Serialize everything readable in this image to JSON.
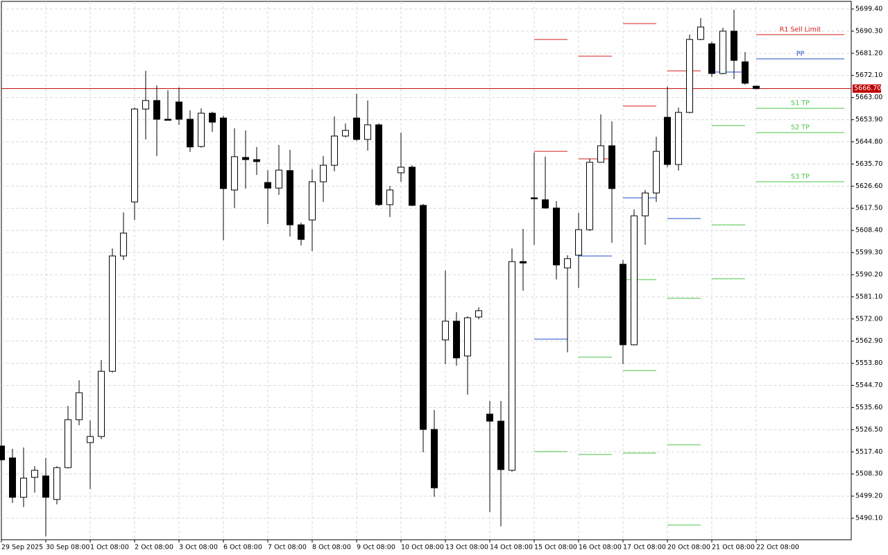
{
  "chart_data": {
    "type": "candlestick",
    "categories": [
      "29 Sep 2025",
      null,
      null,
      null,
      "30 Sep 08:00",
      null,
      null,
      null,
      "1 Oct 08:00",
      null,
      null,
      null,
      "2 Oct 08:00",
      null,
      null,
      null,
      "3 Oct 08:00",
      null,
      null,
      null,
      "6 Oct 08:00",
      null,
      null,
      null,
      "7 Oct 08:00",
      null,
      null,
      null,
      "8 Oct 08:00",
      null,
      null,
      null,
      "9 Oct 08:00",
      null,
      null,
      null,
      "10 Oct 08:00",
      null,
      null,
      null,
      "13 Oct 08:00",
      null,
      null,
      null,
      "14 Oct 08:00",
      null,
      null,
      null,
      "15 Oct 08:00",
      null,
      null,
      null,
      "16 Oct 08:00",
      null,
      null,
      null,
      "17 Oct 08:00",
      null,
      null,
      null,
      "20 Oct 08:00",
      null,
      null,
      null,
      "21 Oct 08:00",
      null,
      null,
      null,
      "22 Oct 08:00"
    ],
    "open": [
      5519.8,
      5514.9,
      5498.7,
      5506.9,
      5507.5,
      5497.8,
      5510.9,
      5530.6,
      5521.2,
      5523.7,
      5550.5,
      5597.9,
      5620.1,
      5658.3,
      5661.8,
      5654.1,
      5661.2,
      5654.1,
      5642.9,
      5656.6,
      5654.6,
      5625.0,
      5638.4,
      5637.5,
      5628.1,
      5625.8,
      5633.0,
      5610.7,
      5612.7,
      5628.4,
      5635.2,
      5647.2,
      5654.6,
      5645.8,
      5651.8,
      5619.0,
      5632.1,
      5634.4,
      5618.7,
      5526.6,
      5563.4,
      5571.1,
      5556.8,
      5572.8,
      5532.9,
      5530.0,
      5509.8,
      5595.6,
      5621.8,
      5621.0,
      5617.6,
      5593.0,
      5598.2,
      5608.7,
      5636.4,
      5643.2,
      5594.5,
      5561.4,
      5614.4,
      5623.8,
      5654.9,
      5635.5,
      5656.9,
      5686.9,
      5685.1,
      5672.9,
      5690.3,
      5677.7,
      5667.7
    ],
    "high": [
      5519.8,
      5518.6,
      5519.2,
      5511.5,
      5514.9,
      5511.5,
      5536.3,
      5546.8,
      5530.3,
      5555.1,
      5601.0,
      5615.8,
      5658.9,
      5674.0,
      5668.0,
      5666.0,
      5667.2,
      5657.8,
      5658.6,
      5657.2,
      5655.5,
      5650.4,
      5649.5,
      5642.7,
      5633.2,
      5643.5,
      5641.5,
      5611.6,
      5633.5,
      5639.0,
      5655.2,
      5652.4,
      5664.6,
      5661.8,
      5652.4,
      5626.7,
      5648.6,
      5635.2,
      5619.3,
      5534.6,
      5591.9,
      5574.8,
      5573.1,
      5576.8,
      5538.3,
      5538.3,
      5601.0,
      5609.0,
      5640.4,
      5638.7,
      5620.4,
      5598.2,
      5615.6,
      5637.8,
      5656.1,
      5653.2,
      5596.2,
      5617.0,
      5625.0,
      5646.9,
      5667.5,
      5658.9,
      5688.9,
      5695.7,
      5686.0,
      5691.7,
      5699.1,
      5681.7,
      5667.9
    ],
    "low": [
      5514.1,
      5496.4,
      5494.7,
      5500.6,
      5482.7,
      5495.8,
      5510.6,
      5528.3,
      5502.1,
      5522.6,
      5550.0,
      5596.2,
      5612.7,
      5645.8,
      5639.0,
      5653.8,
      5651.8,
      5640.7,
      5642.4,
      5648.9,
      5604.4,
      5617.6,
      5625.6,
      5631.2,
      5611.0,
      5623.0,
      5605.9,
      5602.2,
      5599.9,
      5620.1,
      5632.7,
      5646.7,
      5645.2,
      5641.2,
      5618.4,
      5613.9,
      5628.4,
      5618.4,
      5517.2,
      5498.9,
      5553.4,
      5552.8,
      5540.9,
      5571.9,
      5492.7,
      5486.7,
      5509.2,
      5583.6,
      5602.5,
      5617.3,
      5588.2,
      5558.3,
      5584.8,
      5608.2,
      5636.4,
      5603.3,
      5553.4,
      5561.1,
      5602.5,
      5620.1,
      5634.4,
      5633.0,
      5656.6,
      5686.6,
      5671.5,
      5672.6,
      5670.6,
      5668.3,
      5666.4
    ],
    "close": [
      5514.1,
      5498.7,
      5506.6,
      5509.8,
      5498.7,
      5510.9,
      5530.6,
      5541.7,
      5523.7,
      5550.5,
      5597.9,
      5607.3,
      5658.3,
      5661.8,
      5654.1,
      5653.8,
      5654.1,
      5642.7,
      5656.6,
      5652.9,
      5625.6,
      5638.7,
      5637.5,
      5636.7,
      5625.8,
      5633.2,
      5610.7,
      5604.7,
      5628.4,
      5635.2,
      5647.2,
      5649.5,
      5645.8,
      5651.8,
      5619.0,
      5625.0,
      5634.4,
      5618.7,
      5526.6,
      5502.6,
      5571.1,
      5556.0,
      5572.5,
      5575.4,
      5530.0,
      5510.1,
      5595.6,
      5595.0,
      5621.6,
      5617.6,
      5594.2,
      5596.8,
      5608.7,
      5636.4,
      5643.2,
      5625.6,
      5561.4,
      5614.4,
      5623.8,
      5640.9,
      5635.5,
      5656.9,
      5686.9,
      5692.0,
      5672.9,
      5690.3,
      5678.3,
      5668.9,
      5666.7
    ],
    "up_color": "#ffffff",
    "down_color": "#000000",
    "ylim": [
      5481.26,
      5702.54
    ],
    "yticks": [
      {
        "value": 5699.4,
        "label": "5699.40"
      },
      {
        "value": 5690.3,
        "label": "5690.30"
      },
      {
        "value": 5681.2,
        "label": "5681.20"
      },
      {
        "value": 5672.1,
        "label": "5672.10"
      },
      {
        "value": 5663.0,
        "label": "5663.00"
      },
      {
        "value": 5653.9,
        "label": "5653.90"
      },
      {
        "value": 5644.8,
        "label": "5644.80"
      },
      {
        "value": 5635.7,
        "label": "5635.70"
      },
      {
        "value": 5626.6,
        "label": "5626.60"
      },
      {
        "value": 5617.5,
        "label": "5617.50"
      },
      {
        "value": 5608.4,
        "label": "5608.40"
      },
      {
        "value": 5599.3,
        "label": "5599.30"
      },
      {
        "value": 5590.2,
        "label": "5590.20"
      },
      {
        "value": 5581.1,
        "label": "5581.10"
      },
      {
        "value": 5572.0,
        "label": "5572.00"
      },
      {
        "value": 5562.9,
        "label": "5562.90"
      },
      {
        "value": 5553.8,
        "label": "5553.80"
      },
      {
        "value": 5544.7,
        "label": "5544.70"
      },
      {
        "value": 5535.6,
        "label": "5535.60"
      },
      {
        "value": 5526.5,
        "label": "5526.50"
      },
      {
        "value": 5517.4,
        "label": "5517.40"
      },
      {
        "value": 5508.3,
        "label": "5508.30"
      },
      {
        "value": 5499.2,
        "label": "5499.20"
      },
      {
        "value": 5490.1,
        "label": "5490.10"
      }
    ],
    "grid": true,
    "current_price": {
      "value": 5666.7,
      "label": "5666.70",
      "color": "#c00000"
    },
    "pivot_levels": [
      [
        {
          "value": 5686.9,
          "color": "#d41e1e"
        },
        {
          "value": 5640.9,
          "color": "#d41e1e"
        },
        {
          "value": 5563.7,
          "color": "#1f4dc8"
        },
        {
          "value": 5517.5,
          "color": "#46c346"
        }
      ],
      [
        {
          "value": 5680.0,
          "color": "#d41e1e"
        },
        {
          "value": 5637.8,
          "color": "#d41e1e"
        },
        {
          "value": 5597.9,
          "color": "#1f4dc8"
        },
        {
          "value": 5556.3,
          "color": "#46c346"
        },
        {
          "value": 5516.3,
          "color": "#46c346"
        }
      ],
      [
        {
          "value": 5693.4,
          "color": "#d41e1e"
        },
        {
          "value": 5659.5,
          "color": "#d41e1e"
        },
        {
          "value": 5621.8,
          "color": "#1f4dc8"
        },
        {
          "value": 5588.2,
          "color": "#46c346"
        },
        {
          "value": 5550.8,
          "color": "#46c346"
        },
        {
          "value": 5516.9,
          "color": "#46c346"
        }
      ],
      [
        {
          "value": 5674.0,
          "color": "#d41e1e"
        },
        {
          "value": 5613.3,
          "color": "#1f4dc8"
        },
        {
          "value": 5580.5,
          "color": "#46c346"
        },
        {
          "value": 5520.3,
          "color": "#46c346"
        },
        {
          "value": 5487.3,
          "color": "#46c346"
        }
      ],
      [
        {
          "value": 5673.5,
          "color": "#1f4dc8"
        },
        {
          "value": 5651.5,
          "color": "#46c346"
        },
        {
          "value": 5610.7,
          "color": "#46c346"
        },
        {
          "value": 5588.5,
          "color": "#46c346"
        }
      ]
    ],
    "labeled_levels": [
      {
        "label": "R1 Sell Limit",
        "value": 5688.9,
        "color": "#d41e1e"
      },
      {
        "label": "PP",
        "value": 5678.9,
        "color": "#1f4dc8"
      },
      {
        "label": "S1 TP",
        "value": 5658.6,
        "color": "#46c346"
      },
      {
        "label": "S2 TP",
        "value": 5648.6,
        "color": "#46c346"
      },
      {
        "label": "S3 TP",
        "value": 5628.4,
        "color": "#46c346"
      }
    ]
  }
}
